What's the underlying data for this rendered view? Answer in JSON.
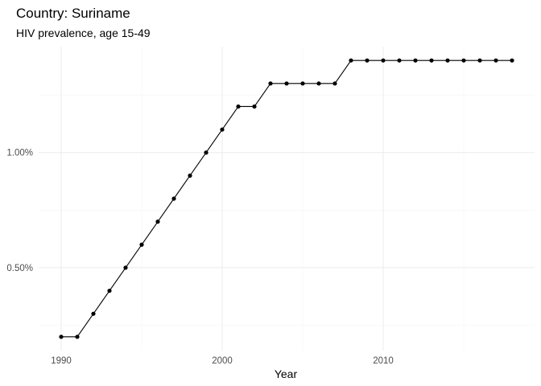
{
  "chart_data": {
    "type": "line",
    "title": "Country: Suriname",
    "subtitle": "HIV prevalence, age 15-49",
    "xlabel": "Year",
    "ylabel": "",
    "x": [
      1990,
      1991,
      1992,
      1993,
      1994,
      1995,
      1996,
      1997,
      1998,
      1999,
      2000,
      2001,
      2002,
      2003,
      2004,
      2005,
      2006,
      2007,
      2008,
      2009,
      2010,
      2011,
      2012,
      2013,
      2014,
      2015,
      2016,
      2017,
      2018
    ],
    "series": [
      {
        "values": [
          0.2,
          0.2,
          0.3,
          0.4,
          0.5,
          0.6,
          0.7,
          0.8,
          0.9,
          1.0,
          1.1,
          1.2,
          1.2,
          1.3,
          1.3,
          1.3,
          1.3,
          1.3,
          1.4,
          1.4,
          1.4,
          1.4,
          1.4,
          1.4,
          1.4,
          1.4,
          1.4,
          1.4,
          1.4
        ]
      }
    ],
    "x_ticks": [
      1990,
      2000,
      2010
    ],
    "x_tick_labels": [
      "1990",
      "2000",
      "2010"
    ],
    "y_ticks": [
      0.5,
      1.0
    ],
    "y_tick_labels": [
      "0.50%",
      "1.00%"
    ],
    "xlim": [
      1988.6,
      2019.4
    ],
    "ylim": [
      0.14,
      1.46
    ],
    "grid": true,
    "legend": "none",
    "colors": {
      "line": "#000000",
      "point": "#000000",
      "grid_major": "#ebebeb",
      "grid_minor": "#f3f3f3"
    }
  }
}
